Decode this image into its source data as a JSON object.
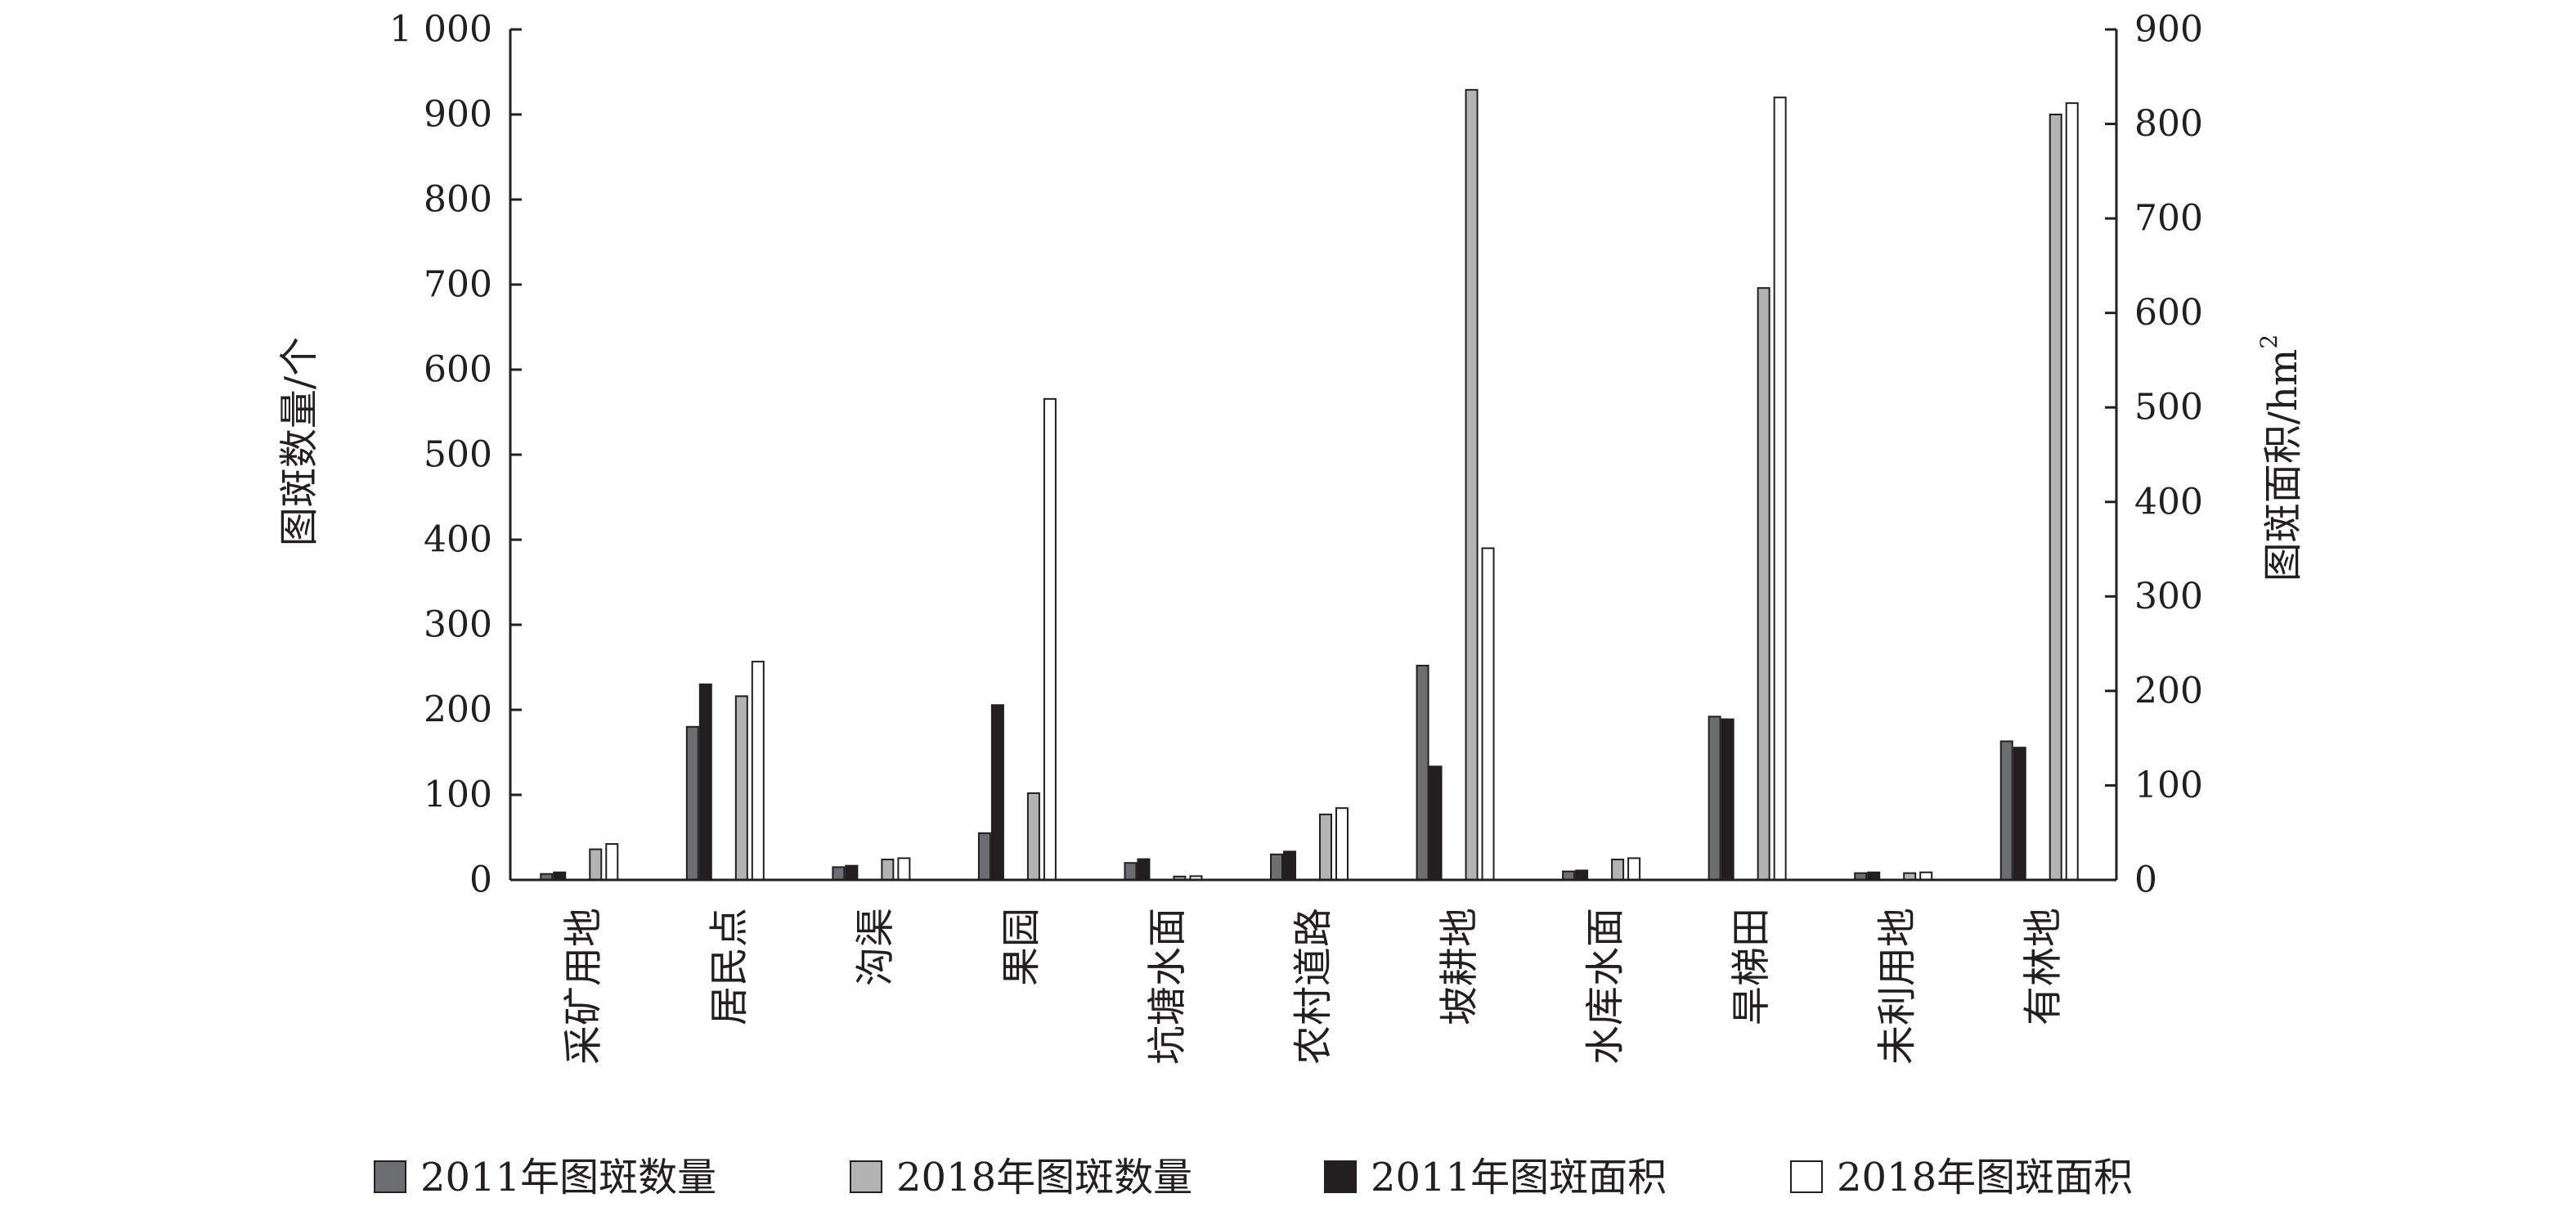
{
  "chart_data": {
    "type": "bar",
    "categories": [
      "采矿用地",
      "居民点",
      "沟渠",
      "果园",
      "坑塘水面",
      "农村道路",
      "坡耕地",
      "水库水面",
      "旱梯田",
      "未利用地",
      "有林地"
    ],
    "series": [
      {
        "name": "2011年图斑数量",
        "axis": "left",
        "color": "#6d6e71",
        "values": [
          7,
          180,
          15,
          55,
          20,
          30,
          252,
          10,
          192,
          8,
          163
        ]
      },
      {
        "name": "2011年图斑面积",
        "axis": "right",
        "color": "#231f20",
        "values": [
          8,
          207,
          15,
          185,
          22,
          30,
          120,
          10,
          170,
          8,
          140
        ]
      },
      {
        "name": "2018年图斑数量",
        "axis": "left",
        "color": "#b3b3b3",
        "values": [
          36,
          216,
          24,
          102,
          4,
          77,
          929,
          24,
          696,
          8,
          900
        ]
      },
      {
        "name": "2018年图斑面积",
        "axis": "right",
        "color": "#ffffff",
        "values": [
          38,
          231,
          23,
          509,
          4,
          76,
          351,
          23,
          828,
          8,
          822
        ]
      }
    ],
    "y_left": {
      "label": "图斑数量/个",
      "min": 0,
      "max": 1000,
      "ticks": [
        0,
        100,
        200,
        300,
        400,
        500,
        600,
        700,
        800,
        900,
        1000
      ],
      "tick_labels": [
        "0",
        "100",
        "200",
        "300",
        "400",
        "500",
        "600",
        "700",
        "800",
        "900",
        "1 000"
      ]
    },
    "y_right": {
      "label": "图斑面积/hm",
      "label_sup": "2",
      "min": 0,
      "max": 900,
      "ticks": [
        0,
        100,
        200,
        300,
        400,
        500,
        600,
        700,
        800,
        900
      ],
      "tick_labels": [
        "0",
        "100",
        "200",
        "300",
        "400",
        "500",
        "600",
        "700",
        "800",
        "900"
      ]
    },
    "legend": {
      "placement": "bottom",
      "order": [
        "2011年图斑数量",
        "2018年图斑数量",
        "2011年图斑面积",
        "2018年图斑面积"
      ]
    },
    "grid": false
  }
}
